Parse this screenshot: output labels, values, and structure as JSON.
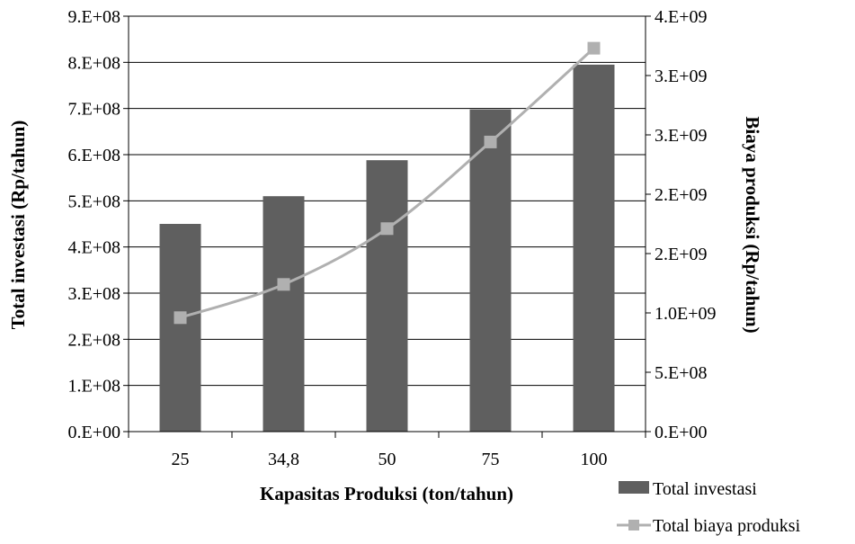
{
  "chart_data": {
    "type": "bar+line",
    "categories": [
      "25",
      "34,8",
      "50",
      "75",
      "100"
    ],
    "xlabel": "Kapasitas Produksi  (ton/tahun)",
    "ylabel": "Total investasi (Rp/tahun)",
    "y2label": "Biaya produksi  (Rp/tahun)",
    "ylim": [
      0,
      900000000
    ],
    "y2lim": [
      0,
      3500000000
    ],
    "yticks": [
      "0.E+00",
      "1.E+08",
      "2.E+08",
      "3.E+08",
      "4.E+08",
      "5.E+08",
      "6.E+08",
      "7.E+08",
      "8.E+08",
      "9.E+08"
    ],
    "y2ticks": [
      "0.E+00",
      "5.E+08",
      "1.0E+09",
      "2.E+09",
      "2.E+09",
      "3.E+09",
      "3.E+09",
      "4.E+09"
    ],
    "grid": true,
    "legend_position": "bottom-right",
    "series": [
      {
        "name": "Total investasi",
        "type": "bar",
        "axis": "left",
        "color": "#5f5f5f",
        "values": [
          450000000,
          510000000,
          588000000,
          698000000,
          795000000
        ]
      },
      {
        "name": "Total biaya produksi",
        "type": "line",
        "axis": "right",
        "color": "#b0b0b0",
        "values": [
          960000000,
          1240000000,
          1710000000,
          2440000000,
          3230000000
        ]
      }
    ]
  }
}
